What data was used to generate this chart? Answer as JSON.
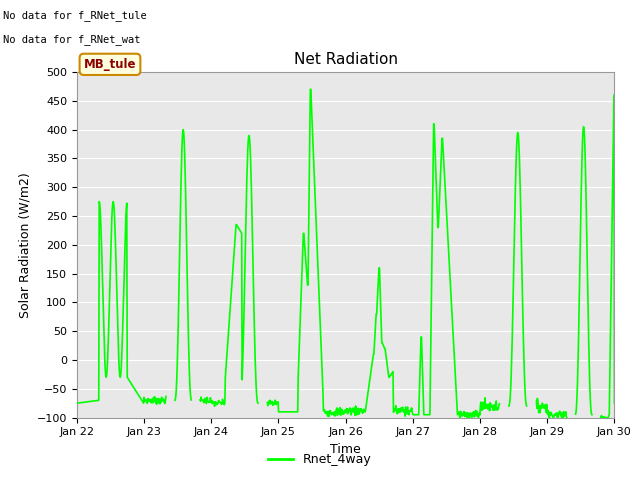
{
  "title": "Net Radiation",
  "xlabel": "Time",
  "ylabel": "Solar Radiation (W/m2)",
  "line_color": "#00FF00",
  "line_width": 1.2,
  "bg_color": "#E8E8E8",
  "ylim": [
    -100,
    500
  ],
  "yticks": [
    -100,
    -50,
    0,
    50,
    100,
    150,
    200,
    250,
    300,
    350,
    400,
    450,
    500
  ],
  "note_line1": "No data for f_RNet_tule",
  "note_line2": "No data for f_RNet_wat",
  "legend_label": "Rnet_4way",
  "annotation_label": "MB_tule",
  "xlim_start": 0,
  "xlim_end": 192,
  "x_tick_positions": [
    0,
    24,
    48,
    72,
    96,
    120,
    144,
    168,
    192
  ],
  "x_tick_labels": [
    "Jan 22",
    "Jan 23",
    "Jan 24",
    "Jan 25",
    "Jan 26",
    "Jan 27",
    "Jan 28",
    "Jan 29",
    "Jan 30"
  ]
}
